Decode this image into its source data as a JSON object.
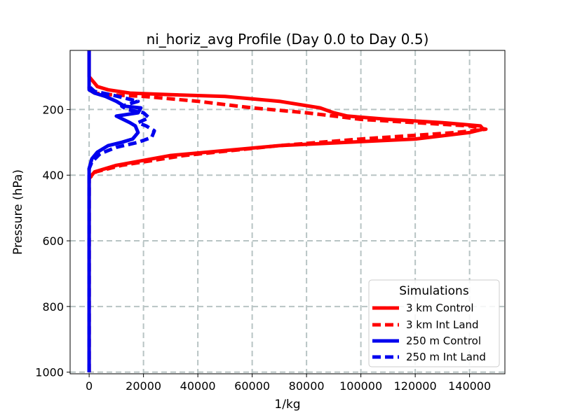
{
  "chart_data": {
    "type": "line",
    "title": "ni_horiz_avg Profile (Day 0.0 to Day 0.5)",
    "xlabel": "1/kg",
    "ylabel": "Pressure (hPa)",
    "xlim": [
      -7000,
      153000
    ],
    "ylim": [
      1005,
      20
    ],
    "y_inverted": true,
    "grid": true,
    "xticks": [
      0,
      20000,
      40000,
      60000,
      80000,
      100000,
      120000,
      140000
    ],
    "xtick_labels": [
      "0",
      "20000",
      "40000",
      "60000",
      "80000",
      "100000",
      "120000",
      "140000"
    ],
    "yticks": [
      200,
      400,
      600,
      800,
      1000
    ],
    "ytick_labels": [
      "200",
      "400",
      "600",
      "800",
      "1000"
    ],
    "legend": {
      "title": "Simulations",
      "position": "lower-right"
    },
    "series": [
      {
        "name": "3 km Control",
        "color": "#ff0000",
        "style": "solid",
        "x": [
          0,
          0,
          2000,
          10000,
          30000,
          70000,
          120000,
          140000,
          145000,
          144000,
          130000,
          110000,
          95000,
          90000,
          85000,
          70000,
          50000,
          30000,
          15000,
          7000,
          3000,
          1000,
          0,
          0
        ],
        "y": [
          1000,
          410,
          390,
          370,
          340,
          310,
          290,
          270,
          260,
          250,
          240,
          230,
          220,
          210,
          195,
          175,
          160,
          155,
          150,
          140,
          130,
          110,
          100,
          20
        ]
      },
      {
        "name": "3 km Int Land",
        "color": "#ff0000",
        "style": "dashed",
        "x": [
          0,
          0,
          2500,
          12000,
          35000,
          70000,
          100000,
          135000,
          146000,
          140000,
          120000,
          100000,
          90000,
          80000,
          60000,
          40000,
          20000,
          8000,
          2000,
          0,
          0
        ],
        "y": [
          1000,
          410,
          390,
          370,
          340,
          310,
          290,
          270,
          260,
          250,
          240,
          230,
          220,
          210,
          195,
          175,
          160,
          155,
          150,
          140,
          130
        ]
      },
      {
        "name": "250 m Control",
        "color": "#0000ee",
        "style": "solid",
        "x": [
          0,
          0,
          0,
          1000,
          3000,
          7000,
          12000,
          16000,
          18000,
          17000,
          15000,
          10000,
          18000,
          19000,
          13000,
          10000,
          6000,
          2000,
          0,
          0,
          0
        ],
        "y": [
          1000,
          400,
          380,
          350,
          330,
          310,
          300,
          290,
          270,
          250,
          240,
          220,
          210,
          195,
          190,
          175,
          160,
          150,
          140,
          100,
          20
        ]
      },
      {
        "name": "250 m Int Land",
        "color": "#0000ee",
        "style": "dashed",
        "x": [
          0,
          0,
          1000,
          4000,
          10000,
          18000,
          23000,
          24000,
          21000,
          18000,
          22000,
          20000,
          14000,
          12000,
          18000,
          8000,
          2000,
          0
        ],
        "y": [
          1000,
          380,
          360,
          335,
          315,
          300,
          285,
          265,
          250,
          240,
          225,
          210,
          200,
          190,
          175,
          155,
          145,
          130
        ]
      }
    ]
  }
}
